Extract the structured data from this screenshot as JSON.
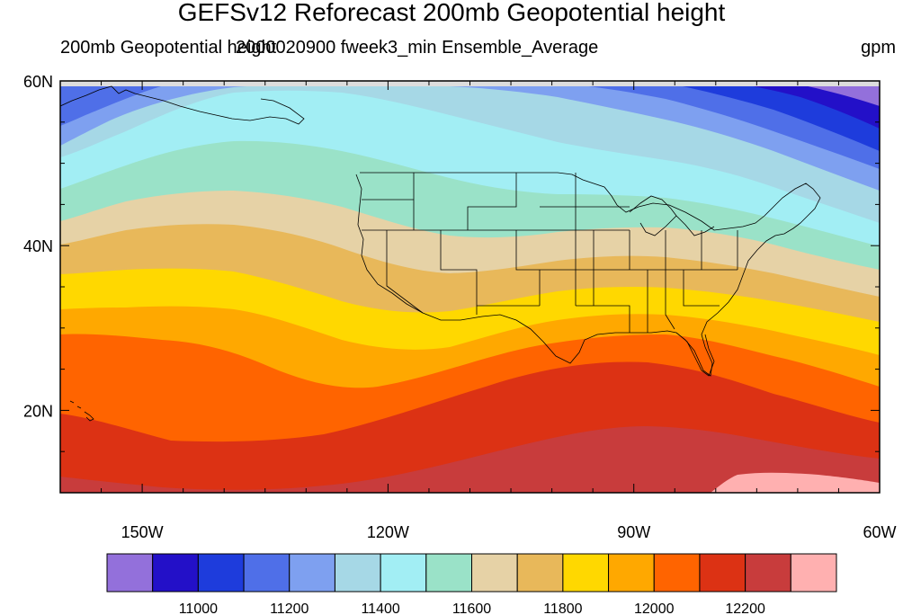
{
  "title": "GEFSv12 Reforecast 200mb Geopotential height",
  "subtitle_left": "200mb Geopotential height",
  "subtitle_center": "2000020900 fweek3_min Ensemble_Average",
  "units": "gpm",
  "map": {
    "projection": "cylindrical equidistant",
    "lon_range": [
      -160,
      -60
    ],
    "lat_range": [
      10,
      60
    ],
    "lat_ticks": [
      {
        "lat": 60,
        "label": "60N"
      },
      {
        "lat": 40,
        "label": "40N"
      },
      {
        "lat": 20,
        "label": "20N"
      }
    ],
    "lon_ticks": [
      {
        "lon": -150,
        "label": "150W"
      },
      {
        "lon": -120,
        "label": "120W"
      },
      {
        "lon": -90,
        "label": "90W"
      },
      {
        "lon": -60,
        "label": "60W"
      }
    ],
    "features": [
      "coastlines",
      "US state borders",
      "Canada",
      "Alaska",
      "Hawaii",
      "Florida",
      "Gulf of Mexico"
    ]
  },
  "colorbar": {
    "colors": [
      "#9370db",
      "#2310c8",
      "#1e3cdc",
      "#4f6fe8",
      "#7ea0f0",
      "#a6d8e6",
      "#a2eef4",
      "#9ae2c8",
      "#e6d2a6",
      "#e8b85a",
      "#ffd800",
      "#ffa800",
      "#ff6400",
      "#dc3214",
      "#c83c3c",
      "#ffb0b0"
    ],
    "labels": [
      {
        "boundary": 2,
        "text": "11000"
      },
      {
        "boundary": 4,
        "text": "11200"
      },
      {
        "boundary": 6,
        "text": "11400"
      },
      {
        "boundary": 8,
        "text": "11600"
      },
      {
        "boundary": 10,
        "text": "11800"
      },
      {
        "boundary": 12,
        "text": "12000"
      },
      {
        "boundary": 14,
        "text": "12200"
      }
    ]
  }
}
